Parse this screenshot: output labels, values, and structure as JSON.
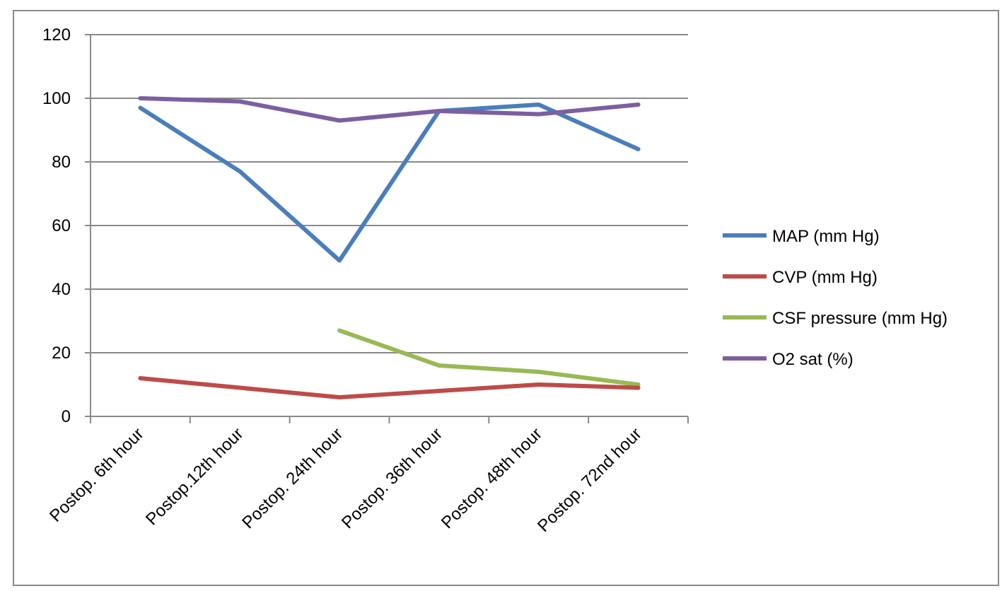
{
  "chart_data": {
    "type": "line",
    "title": "",
    "xlabel": "",
    "ylabel": "",
    "categories": [
      "Postop. 6th hour",
      "Postop.12th hour",
      "Postop. 24th hour",
      "Postop. 36th hour",
      "Postop. 48th hour",
      "Postop. 72nd hour"
    ],
    "ylim": [
      0,
      120
    ],
    "yticks": [
      "0",
      "20",
      "40",
      "60",
      "80",
      "100",
      "120"
    ],
    "grid": true,
    "legend_position": "right",
    "series": [
      {
        "name": "MAP (mm Hg)",
        "color": "#4a7ebb",
        "values": [
          97,
          77,
          49,
          96,
          98,
          84
        ]
      },
      {
        "name": "CVP (mm Hg)",
        "color": "#be4b48",
        "values": [
          12,
          9,
          6,
          8,
          10,
          9
        ]
      },
      {
        "name": "CSF pressure (mm Hg)",
        "color": "#98b954",
        "values": [
          null,
          null,
          27,
          16,
          14,
          10
        ]
      },
      {
        "name": "O2 sat (%)",
        "color": "#7d5fa0",
        "values": [
          100,
          99,
          93,
          96,
          95,
          98
        ]
      }
    ]
  }
}
